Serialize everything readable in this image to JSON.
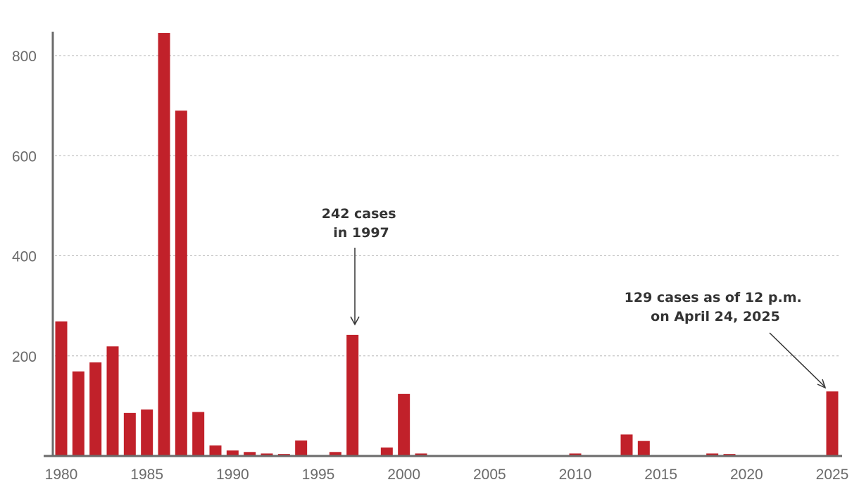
{
  "chart_data": {
    "type": "bar",
    "title": "",
    "xlabel": "",
    "ylabel": "",
    "ylim": [
      0,
      850
    ],
    "yticks": [
      200,
      400,
      600,
      800
    ],
    "xticks": [
      1980,
      1985,
      1990,
      1995,
      2000,
      2005,
      2010,
      2015,
      2020,
      2025
    ],
    "x": [
      1980,
      1981,
      1982,
      1983,
      1984,
      1985,
      1986,
      1987,
      1988,
      1989,
      1990,
      1991,
      1992,
      1993,
      1994,
      1995,
      1996,
      1997,
      1998,
      1999,
      2000,
      2001,
      2002,
      2003,
      2004,
      2005,
      2006,
      2007,
      2008,
      2009,
      2010,
      2011,
      2012,
      2013,
      2014,
      2015,
      2016,
      2017,
      2018,
      2019,
      2020,
      2021,
      2022,
      2023,
      2024,
      2025
    ],
    "values": [
      269,
      169,
      187,
      219,
      86,
      93,
      845,
      690,
      88,
      21,
      11,
      8,
      5,
      4,
      31,
      0,
      8,
      242,
      0,
      17,
      124,
      5,
      0,
      0,
      0,
      0,
      0,
      0,
      0,
      0,
      5,
      0,
      0,
      43,
      30,
      0,
      0,
      0,
      5,
      4,
      0,
      0,
      0,
      0,
      0,
      129
    ],
    "color": "#c1212a",
    "grid": true,
    "annotations": [
      {
        "lines": [
          "242 cases",
          "in 1997"
        ],
        "target_year": 1997
      },
      {
        "lines": [
          "129 cases as of 12 p.m.",
          "on April 24, 2025"
        ],
        "target_year": 2025
      }
    ]
  }
}
